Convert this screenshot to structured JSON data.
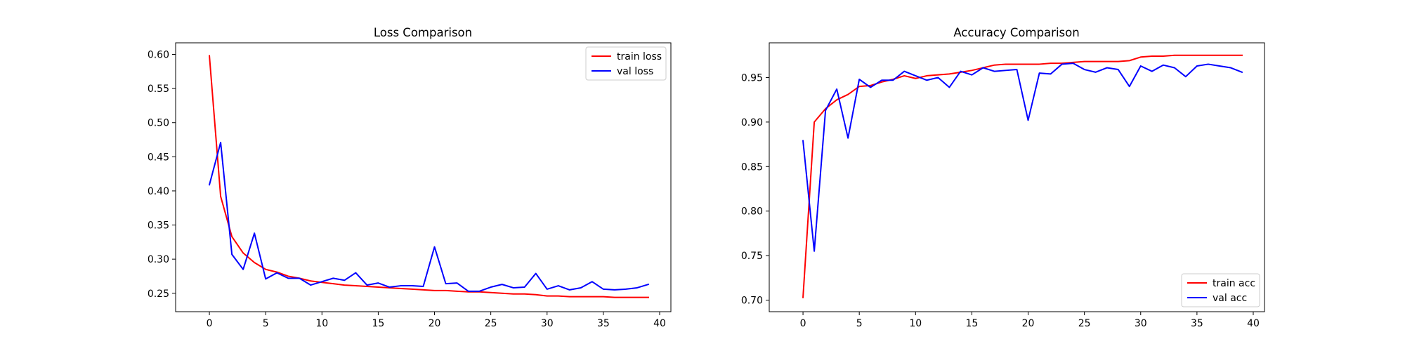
{
  "chart_data": [
    {
      "type": "line",
      "title": "Loss Comparison",
      "xlabel": "",
      "ylabel": "",
      "xlim": [
        -3,
        41
      ],
      "ylim": [
        0.223,
        0.617
      ],
      "x_ticks": [
        0,
        5,
        10,
        15,
        20,
        25,
        30,
        35,
        40
      ],
      "y_ticks": [
        0.25,
        0.3,
        0.35,
        0.4,
        0.45,
        0.5,
        0.55,
        0.6
      ],
      "legend_position": "top-right",
      "x": [
        0,
        1,
        2,
        3,
        4,
        5,
        6,
        7,
        8,
        9,
        10,
        11,
        12,
        13,
        14,
        15,
        16,
        17,
        18,
        19,
        20,
        21,
        22,
        23,
        24,
        25,
        26,
        27,
        28,
        29,
        30,
        31,
        32,
        33,
        34,
        35,
        36,
        37,
        38,
        39
      ],
      "series": [
        {
          "name": "train loss",
          "color": "#ff0000",
          "values": [
            0.598,
            0.392,
            0.333,
            0.309,
            0.295,
            0.285,
            0.281,
            0.275,
            0.272,
            0.268,
            0.266,
            0.264,
            0.262,
            0.261,
            0.26,
            0.259,
            0.258,
            0.257,
            0.256,
            0.255,
            0.254,
            0.254,
            0.253,
            0.252,
            0.252,
            0.251,
            0.25,
            0.249,
            0.249,
            0.248,
            0.246,
            0.246,
            0.245,
            0.245,
            0.245,
            0.245,
            0.244,
            0.244,
            0.244,
            0.244
          ]
        },
        {
          "name": "val loss",
          "color": "#0000ff",
          "values": [
            0.409,
            0.471,
            0.307,
            0.285,
            0.338,
            0.271,
            0.28,
            0.272,
            0.272,
            0.262,
            0.267,
            0.272,
            0.269,
            0.28,
            0.262,
            0.265,
            0.259,
            0.261,
            0.261,
            0.26,
            0.318,
            0.264,
            0.265,
            0.253,
            0.253,
            0.259,
            0.263,
            0.258,
            0.259,
            0.279,
            0.256,
            0.261,
            0.255,
            0.258,
            0.267,
            0.256,
            0.255,
            0.256,
            0.258,
            0.263
          ]
        }
      ]
    },
    {
      "type": "line",
      "title": "Accuracy Comparison",
      "xlabel": "",
      "ylabel": "",
      "xlim": [
        -3,
        41
      ],
      "ylim": [
        0.687,
        0.989
      ],
      "x_ticks": [
        0,
        5,
        10,
        15,
        20,
        25,
        30,
        35,
        40
      ],
      "y_ticks": [
        0.7,
        0.75,
        0.8,
        0.85,
        0.9,
        0.95
      ],
      "legend_position": "bottom-right",
      "x": [
        0,
        1,
        2,
        3,
        4,
        5,
        6,
        7,
        8,
        9,
        10,
        11,
        12,
        13,
        14,
        15,
        16,
        17,
        18,
        19,
        20,
        21,
        22,
        23,
        24,
        25,
        26,
        27,
        28,
        29,
        30,
        31,
        32,
        33,
        34,
        35,
        36,
        37,
        38,
        39
      ],
      "series": [
        {
          "name": "train acc",
          "color": "#ff0000",
          "values": [
            0.703,
            0.9,
            0.915,
            0.925,
            0.931,
            0.94,
            0.941,
            0.945,
            0.948,
            0.952,
            0.949,
            0.952,
            0.953,
            0.954,
            0.956,
            0.958,
            0.961,
            0.964,
            0.965,
            0.965,
            0.965,
            0.965,
            0.966,
            0.966,
            0.967,
            0.968,
            0.968,
            0.968,
            0.968,
            0.969,
            0.973,
            0.974,
            0.974,
            0.975,
            0.975,
            0.975,
            0.975,
            0.975,
            0.975,
            0.975
          ]
        },
        {
          "name": "val acc",
          "color": "#0000ff",
          "values": [
            0.879,
            0.755,
            0.913,
            0.937,
            0.882,
            0.948,
            0.939,
            0.947,
            0.947,
            0.957,
            0.952,
            0.947,
            0.95,
            0.939,
            0.957,
            0.953,
            0.961,
            0.957,
            0.958,
            0.959,
            0.902,
            0.955,
            0.954,
            0.965,
            0.966,
            0.959,
            0.956,
            0.961,
            0.959,
            0.94,
            0.963,
            0.957,
            0.964,
            0.961,
            0.951,
            0.963,
            0.965,
            0.963,
            0.961,
            0.956
          ]
        }
      ]
    }
  ]
}
